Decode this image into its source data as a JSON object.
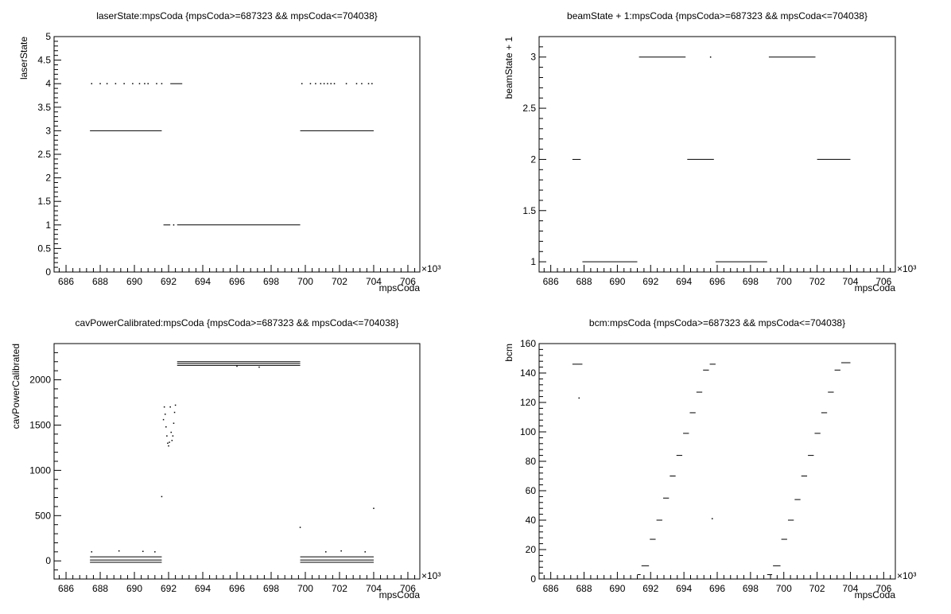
{
  "chart_data": [
    {
      "type": "scatter",
      "title": "laserState:mpsCoda {mpsCoda>=687323 && mpsCoda<=704038}",
      "xlabel": "mpsCoda",
      "ylabel": "laserState",
      "x_multiplier": "×10³",
      "xlim": [
        685.3,
        706.7
      ],
      "ylim": [
        0,
        5
      ],
      "xticks": [
        686,
        688,
        690,
        692,
        694,
        696,
        698,
        700,
        702,
        704,
        706
      ],
      "yticks": [
        0,
        0.5,
        1,
        1.5,
        2,
        2.5,
        3,
        3.5,
        4,
        4.5,
        5
      ],
      "ytick_labels": [
        "0",
        "0.5",
        "1",
        "1.5",
        "2",
        "2.5",
        "3",
        "3.5",
        "4",
        "4.5",
        "5"
      ],
      "segments": [
        {
          "x0": 687.4,
          "x1": 691.6,
          "y": 3
        },
        {
          "x0": 692.5,
          "x1": 699.7,
          "y": 1
        },
        {
          "x0": 691.7,
          "x1": 692.1,
          "y": 1
        },
        {
          "x0": 699.7,
          "x1": 704.0,
          "y": 3
        },
        {
          "x0": 692.1,
          "x1": 692.8,
          "y": 4
        }
      ],
      "points": [
        {
          "x": 687.5,
          "y": 4
        },
        {
          "x": 688.0,
          "y": 4
        },
        {
          "x": 688.4,
          "y": 4
        },
        {
          "x": 688.9,
          "y": 4
        },
        {
          "x": 689.4,
          "y": 4
        },
        {
          "x": 689.9,
          "y": 4
        },
        {
          "x": 690.3,
          "y": 4
        },
        {
          "x": 690.6,
          "y": 4
        },
        {
          "x": 690.8,
          "y": 4
        },
        {
          "x": 691.3,
          "y": 4
        },
        {
          "x": 691.6,
          "y": 4
        },
        {
          "x": 692.3,
          "y": 1
        },
        {
          "x": 699.8,
          "y": 4
        },
        {
          "x": 700.3,
          "y": 4
        },
        {
          "x": 700.6,
          "y": 4
        },
        {
          "x": 700.9,
          "y": 4
        },
        {
          "x": 701.1,
          "y": 4
        },
        {
          "x": 701.3,
          "y": 4
        },
        {
          "x": 701.5,
          "y": 4
        },
        {
          "x": 701.7,
          "y": 4
        },
        {
          "x": 702.4,
          "y": 4
        },
        {
          "x": 703.0,
          "y": 4
        },
        {
          "x": 703.3,
          "y": 4
        },
        {
          "x": 703.7,
          "y": 4
        },
        {
          "x": 703.9,
          "y": 4
        }
      ]
    },
    {
      "type": "scatter",
      "title": "beamState + 1:mpsCoda {mpsCoda>=687323 && mpsCoda<=704038}",
      "xlabel": "mpsCoda",
      "ylabel": "beamState + 1",
      "x_multiplier": "×10³",
      "xlim": [
        685.3,
        706.7
      ],
      "ylim": [
        0.9,
        3.2
      ],
      "xticks": [
        686,
        688,
        690,
        692,
        694,
        696,
        698,
        700,
        702,
        704,
        706
      ],
      "yticks": [
        1,
        1.5,
        2,
        2.5,
        3
      ],
      "ytick_labels": [
        "1",
        "1.5",
        "2",
        "2.5",
        "3"
      ],
      "segments": [
        {
          "x0": 687.3,
          "x1": 687.8,
          "y": 2
        },
        {
          "x0": 687.9,
          "x1": 691.2,
          "y": 1
        },
        {
          "x0": 691.3,
          "x1": 694.1,
          "y": 3
        },
        {
          "x0": 694.2,
          "x1": 695.8,
          "y": 2
        },
        {
          "x0": 695.9,
          "x1": 699.0,
          "y": 1
        },
        {
          "x0": 699.1,
          "x1": 701.9,
          "y": 3
        },
        {
          "x0": 702.0,
          "x1": 704.0,
          "y": 2
        }
      ],
      "points": [
        {
          "x": 695.6,
          "y": 3
        }
      ]
    },
    {
      "type": "scatter",
      "title": "cavPowerCalibrated:mpsCoda {mpsCoda>=687323 && mpsCoda<=704038}",
      "xlabel": "mpsCoda",
      "ylabel": "cavPowerCalibrated",
      "x_multiplier": "×10³",
      "xlim": [
        685.3,
        706.7
      ],
      "ylim": [
        -200,
        2400
      ],
      "xticks": [
        686,
        688,
        690,
        692,
        694,
        696,
        698,
        700,
        702,
        704,
        706
      ],
      "yticks": [
        0,
        500,
        1000,
        1500,
        2000
      ],
      "ytick_labels": [
        "0",
        "500",
        "1000",
        "1500",
        "2000"
      ],
      "segments": [
        {
          "x0": 687.4,
          "x1": 691.6,
          "y": 45
        },
        {
          "x0": 687.4,
          "x1": 691.6,
          "y": 10
        },
        {
          "x0": 687.4,
          "x1": 691.6,
          "y": -15
        },
        {
          "x0": 692.5,
          "x1": 699.7,
          "y": 2200
        },
        {
          "x0": 692.5,
          "x1": 699.7,
          "y": 2180
        },
        {
          "x0": 692.5,
          "x1": 699.7,
          "y": 2160
        },
        {
          "x0": 699.7,
          "x1": 704.0,
          "y": 45
        },
        {
          "x0": 699.7,
          "x1": 704.0,
          "y": 10
        },
        {
          "x0": 699.7,
          "x1": 704.0,
          "y": -15
        }
      ],
      "points": [
        {
          "x": 691.6,
          "y": 710
        },
        {
          "x": 691.7,
          "y": 1560
        },
        {
          "x": 691.75,
          "y": 1700
        },
        {
          "x": 691.8,
          "y": 1620
        },
        {
          "x": 691.85,
          "y": 1480
        },
        {
          "x": 691.9,
          "y": 1380
        },
        {
          "x": 691.95,
          "y": 1300
        },
        {
          "x": 692.0,
          "y": 1270
        },
        {
          "x": 692.05,
          "y": 1310
        },
        {
          "x": 692.1,
          "y": 1700
        },
        {
          "x": 692.15,
          "y": 1420
        },
        {
          "x": 692.2,
          "y": 1330
        },
        {
          "x": 692.25,
          "y": 1380
        },
        {
          "x": 692.3,
          "y": 1520
        },
        {
          "x": 692.35,
          "y": 1640
        },
        {
          "x": 692.4,
          "y": 1720
        },
        {
          "x": 699.7,
          "y": 370
        },
        {
          "x": 704.0,
          "y": 580
        },
        {
          "x": 687.5,
          "y": 100
        },
        {
          "x": 689.1,
          "y": 110
        },
        {
          "x": 690.5,
          "y": 105
        },
        {
          "x": 691.2,
          "y": 100
        },
        {
          "x": 701.2,
          "y": 100
        },
        {
          "x": 702.1,
          "y": 110
        },
        {
          "x": 703.5,
          "y": 100
        },
        {
          "x": 697.3,
          "y": 2140
        },
        {
          "x": 696.0,
          "y": 2150
        }
      ]
    },
    {
      "type": "scatter",
      "title": "bcm:mpsCoda {mpsCoda>=687323 && mpsCoda<=704038}",
      "xlabel": "mpsCoda",
      "ylabel": "bcm",
      "x_multiplier": "×10³",
      "xlim": [
        685.3,
        706.7
      ],
      "ylim": [
        0,
        160
      ],
      "xticks": [
        686,
        688,
        690,
        692,
        694,
        696,
        698,
        700,
        702,
        704,
        706
      ],
      "yticks": [
        0,
        20,
        40,
        60,
        80,
        100,
        120,
        140,
        160
      ],
      "ytick_labels": [
        "0",
        "20",
        "40",
        "60",
        "80",
        "100",
        "120",
        "140",
        "160"
      ],
      "segments": [
        {
          "x0": 687.3,
          "x1": 687.9,
          "y": 146
        },
        {
          "x0": 691.2,
          "x1": 691.4,
          "y": 3
        },
        {
          "x0": 691.45,
          "x1": 691.9,
          "y": 9
        },
        {
          "x0": 691.95,
          "x1": 692.3,
          "y": 27
        },
        {
          "x0": 692.35,
          "x1": 692.7,
          "y": 40
        },
        {
          "x0": 692.75,
          "x1": 693.1,
          "y": 55
        },
        {
          "x0": 693.15,
          "x1": 693.5,
          "y": 70
        },
        {
          "x0": 693.55,
          "x1": 693.9,
          "y": 84
        },
        {
          "x0": 693.95,
          "x1": 694.3,
          "y": 99
        },
        {
          "x0": 694.35,
          "x1": 694.7,
          "y": 113
        },
        {
          "x0": 694.75,
          "x1": 695.1,
          "y": 127
        },
        {
          "x0": 695.15,
          "x1": 695.5,
          "y": 142
        },
        {
          "x0": 695.55,
          "x1": 695.9,
          "y": 146
        },
        {
          "x0": 699.0,
          "x1": 699.3,
          "y": 3
        },
        {
          "x0": 699.35,
          "x1": 699.8,
          "y": 9
        },
        {
          "x0": 699.85,
          "x1": 700.2,
          "y": 27
        },
        {
          "x0": 700.25,
          "x1": 700.6,
          "y": 40
        },
        {
          "x0": 700.65,
          "x1": 701.0,
          "y": 54
        },
        {
          "x0": 701.05,
          "x1": 701.4,
          "y": 70
        },
        {
          "x0": 701.45,
          "x1": 701.8,
          "y": 84
        },
        {
          "x0": 701.85,
          "x1": 702.2,
          "y": 99
        },
        {
          "x0": 702.25,
          "x1": 702.6,
          "y": 113
        },
        {
          "x0": 702.65,
          "x1": 703.0,
          "y": 127
        },
        {
          "x0": 703.05,
          "x1": 703.4,
          "y": 142
        },
        {
          "x0": 703.45,
          "x1": 704.0,
          "y": 147
        }
      ],
      "points": [
        {
          "x": 687.7,
          "y": 123
        },
        {
          "x": 695.7,
          "y": 41
        }
      ]
    }
  ]
}
